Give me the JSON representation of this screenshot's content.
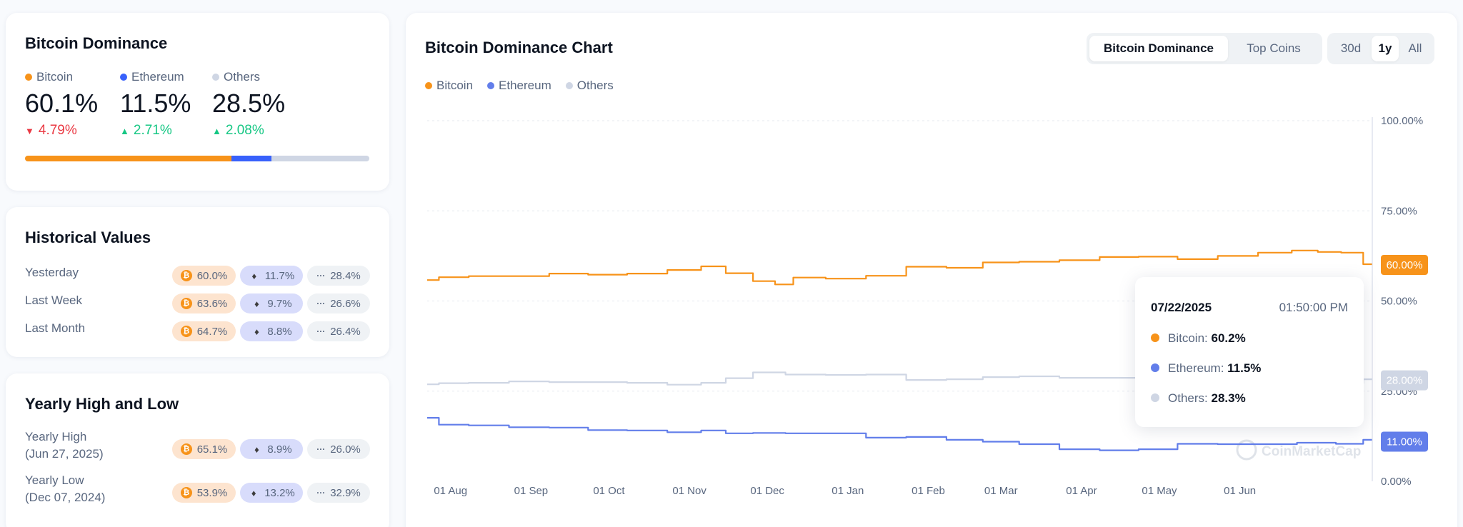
{
  "dominance": {
    "title": "Bitcoin Dominance",
    "coins": [
      {
        "name": "Bitcoin",
        "value": "60.1%",
        "change": "4.79%",
        "direction": "down",
        "color": "#f7931a"
      },
      {
        "name": "Ethereum",
        "value": "11.5%",
        "change": "2.71%",
        "direction": "up",
        "color": "#3861fb"
      },
      {
        "name": "Others",
        "value": "28.5%",
        "change": "2.08%",
        "direction": "up",
        "color": "#cfd6e4"
      }
    ],
    "bar_shares": [
      0.601,
      0.115,
      0.285
    ]
  },
  "historical": {
    "title": "Historical Values",
    "rows": [
      {
        "label": "Yesterday",
        "btc": "60.0%",
        "eth": "11.7%",
        "oth": "28.4%"
      },
      {
        "label": "Last Week",
        "btc": "63.6%",
        "eth": "9.7%",
        "oth": "26.6%"
      },
      {
        "label": "Last Month",
        "btc": "64.7%",
        "eth": "8.8%",
        "oth": "26.4%"
      }
    ]
  },
  "yearly": {
    "title": "Yearly High and Low",
    "rows": [
      {
        "label": "Yearly High",
        "date": "(Jun 27, 2025)",
        "btc": "65.1%",
        "eth": "8.9%",
        "oth": "26.0%"
      },
      {
        "label": "Yearly Low",
        "date": "(Dec 07, 2024)",
        "btc": "53.9%",
        "eth": "13.2%",
        "oth": "32.9%"
      }
    ]
  },
  "chart_panel": {
    "title": "Bitcoin Dominance Chart",
    "view_tabs": [
      "Bitcoin Dominance",
      "Top Coins"
    ],
    "view_active": 0,
    "range_tabs": [
      "30d",
      "1y",
      "All"
    ],
    "range_active": 1,
    "watermark": "CoinMarketCap",
    "end_labels": {
      "Bitcoin": "60.00%",
      "Ethereum": "11.00%",
      "Others": "28.00%"
    },
    "tooltip": {
      "date": "07/22/2025",
      "time": "01:50:00 PM",
      "rows": [
        {
          "name": "Bitcoin",
          "value": "60.2%",
          "color": "#f7931a"
        },
        {
          "name": "Ethereum",
          "value": "11.5%",
          "color": "#627eea"
        },
        {
          "name": "Others",
          "value": "28.3%",
          "color": "#cfd6e4"
        }
      ]
    }
  },
  "chart_data": {
    "type": "line",
    "x_ticks": [
      "01 Aug",
      "01 Sep",
      "01 Oct",
      "01 Nov",
      "01 Dec",
      "01 Jan",
      "01 Feb",
      "01 Mar",
      "01 Apr",
      "01 May",
      "01 Jun"
    ],
    "y_ticks": [
      "0.00%",
      "25.00%",
      "50.00%",
      "75.00%",
      "100.00%"
    ],
    "ylim": [
      0,
      100
    ],
    "grid": true,
    "legend_position": "top-left",
    "series": [
      {
        "name": "Bitcoin",
        "color": "#f7931a",
        "x": [
          "2024-07-23",
          "2024-08-01",
          "2024-08-15",
          "2024-09-01",
          "2024-09-15",
          "2024-10-01",
          "2024-10-15",
          "2024-11-01",
          "2024-11-10",
          "2024-11-20",
          "2024-12-01",
          "2024-12-07",
          "2024-12-15",
          "2025-01-01",
          "2025-01-15",
          "2025-02-01",
          "2025-02-15",
          "2025-03-01",
          "2025-03-15",
          "2025-04-01",
          "2025-04-15",
          "2025-05-01",
          "2025-05-15",
          "2025-06-01",
          "2025-06-15",
          "2025-06-27",
          "2025-07-05",
          "2025-07-15",
          "2025-07-22"
        ],
        "values": [
          55.8,
          56.6,
          56.9,
          56.9,
          57.6,
          57.3,
          57.6,
          58.6,
          59.6,
          57.7,
          55.5,
          54.6,
          56.5,
          56.2,
          57.0,
          59.5,
          59.2,
          60.7,
          60.9,
          61.3,
          62.2,
          62.3,
          61.6,
          62.5,
          63.4,
          64.0,
          63.6,
          63.4,
          60.2
        ]
      },
      {
        "name": "Ethereum",
        "color": "#627eea",
        "x": [
          "2024-07-23",
          "2024-08-01",
          "2024-08-15",
          "2024-09-01",
          "2024-09-15",
          "2024-10-01",
          "2024-10-15",
          "2024-11-01",
          "2024-11-10",
          "2024-11-20",
          "2024-12-01",
          "2024-12-15",
          "2025-01-01",
          "2025-01-15",
          "2025-02-01",
          "2025-02-15",
          "2025-03-01",
          "2025-03-15",
          "2025-04-01",
          "2025-04-15",
          "2025-05-01",
          "2025-05-15",
          "2025-06-01",
          "2025-06-15",
          "2025-07-01",
          "2025-07-15",
          "2025-07-22"
        ],
        "values": [
          17.6,
          15.7,
          15.5,
          15.0,
          14.9,
          14.2,
          14.1,
          13.6,
          14.1,
          13.3,
          13.4,
          13.3,
          13.3,
          12.1,
          12.3,
          11.5,
          11.0,
          10.3,
          8.9,
          8.6,
          8.9,
          10.4,
          10.3,
          10.3,
          10.7,
          10.4,
          11.5
        ]
      },
      {
        "name": "Others",
        "color": "#cfd6e4",
        "x": [
          "2024-07-23",
          "2024-08-01",
          "2024-08-15",
          "2024-09-01",
          "2024-09-15",
          "2024-10-01",
          "2024-10-15",
          "2024-11-01",
          "2024-11-10",
          "2024-11-20",
          "2024-12-01",
          "2024-12-15",
          "2025-01-01",
          "2025-01-15",
          "2025-02-01",
          "2025-02-15",
          "2025-03-01",
          "2025-03-15",
          "2025-04-01",
          "2025-04-15",
          "2025-05-01",
          "2025-05-15",
          "2025-06-01",
          "2025-06-15",
          "2025-07-01",
          "2025-07-15",
          "2025-07-22"
        ],
        "values": [
          26.9,
          27.2,
          27.3,
          27.7,
          27.5,
          27.5,
          27.3,
          26.8,
          27.3,
          28.6,
          30.2,
          29.6,
          29.5,
          29.6,
          28.1,
          28.3,
          28.9,
          29.1,
          28.7,
          28.7,
          28.3,
          27.5,
          27.3,
          26.9,
          26.8,
          27.2,
          28.3
        ]
      }
    ]
  }
}
